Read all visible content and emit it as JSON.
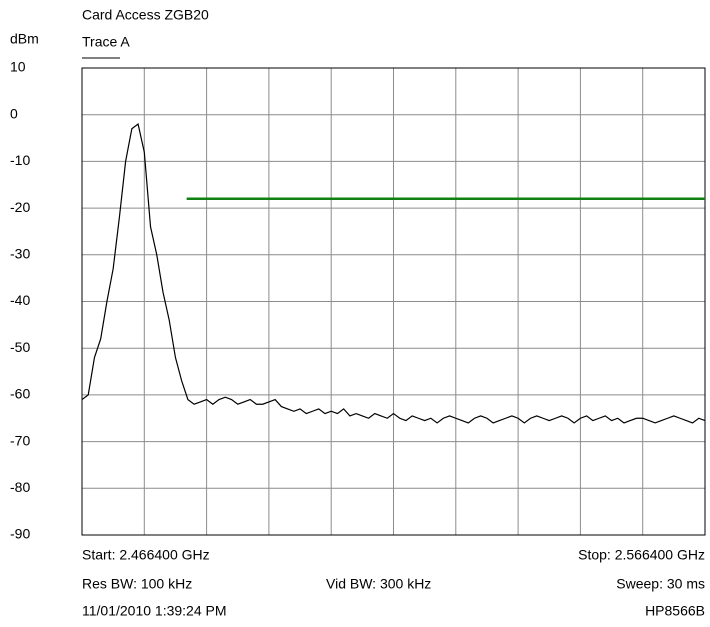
{
  "chart_data": {
    "type": "line",
    "title": "Card Access ZGB20",
    "y_label": "dBm",
    "xlim": [
      2.4664,
      2.5664
    ],
    "ylim": [
      -90,
      10
    ],
    "yticks": [
      10,
      0,
      -10,
      -20,
      -30,
      -40,
      -50,
      -60,
      -70,
      -80,
      -90
    ],
    "xticks": [
      2.4664,
      2.4764,
      2.4864,
      2.4964,
      2.5064,
      2.5164,
      2.5264,
      2.5364,
      2.5464,
      2.5564,
      2.5664
    ],
    "grid": true,
    "series": [
      {
        "name": "Trace A",
        "color": "#000000",
        "x": [
          2.4664,
          2.4674,
          2.4684,
          2.4694,
          2.4704,
          2.4714,
          2.4724,
          2.4734,
          2.4744,
          2.4754,
          2.4764,
          2.4774,
          2.4784,
          2.4794,
          2.4804,
          2.4814,
          2.4824,
          2.4834,
          2.4844,
          2.4854,
          2.4864,
          2.4874,
          2.4884,
          2.4894,
          2.4904,
          2.4914,
          2.4924,
          2.4934,
          2.4944,
          2.4954,
          2.4964,
          2.4974,
          2.4984,
          2.4994,
          2.5004,
          2.5014,
          2.5024,
          2.5034,
          2.5044,
          2.5054,
          2.5064,
          2.5074,
          2.5084,
          2.5094,
          2.5104,
          2.5114,
          2.5124,
          2.5134,
          2.5144,
          2.5154,
          2.5164,
          2.5174,
          2.5184,
          2.5194,
          2.5204,
          2.5214,
          2.5224,
          2.5234,
          2.5244,
          2.5254,
          2.5264,
          2.5274,
          2.5284,
          2.5294,
          2.5304,
          2.5314,
          2.5324,
          2.5334,
          2.5344,
          2.5354,
          2.5364,
          2.5374,
          2.5384,
          2.5394,
          2.5404,
          2.5414,
          2.5424,
          2.5434,
          2.5444,
          2.5454,
          2.5464,
          2.5474,
          2.5484,
          2.5494,
          2.5504,
          2.5514,
          2.5524,
          2.5534,
          2.5544,
          2.5554,
          2.5564,
          2.5574,
          2.5584,
          2.5594,
          2.5604,
          2.5614,
          2.5624,
          2.5634,
          2.5644,
          2.5654,
          2.5664
        ],
        "values": [
          -61,
          -60,
          -52,
          -48,
          -40,
          -33,
          -22,
          -10,
          -3,
          -2,
          -8,
          -24,
          -30,
          -38,
          -44,
          -52,
          -57,
          -61,
          -62,
          -61.5,
          -61,
          -62,
          -61,
          -60.5,
          -61,
          -62,
          -61.5,
          -61,
          -62,
          -62,
          -61.5,
          -61,
          -62.5,
          -63,
          -63.5,
          -63,
          -64,
          -63.5,
          -63,
          -64,
          -63.5,
          -64,
          -63,
          -64.5,
          -64,
          -64.5,
          -65,
          -64,
          -64.5,
          -65,
          -64,
          -65,
          -65.5,
          -64.5,
          -65,
          -65.5,
          -65,
          -66,
          -65,
          -64.5,
          -65,
          -65.5,
          -66,
          -65,
          -64.5,
          -65,
          -66,
          -65.5,
          -65,
          -64.5,
          -65,
          -66,
          -65,
          -64.5,
          -65,
          -65.5,
          -65,
          -64.5,
          -65,
          -66,
          -65,
          -64.5,
          -65.5,
          -65,
          -64.5,
          -65.5,
          -65,
          -66,
          -65.5,
          -65,
          -65,
          -65.5,
          -66,
          -65.5,
          -65,
          -64.5,
          -65,
          -65.5,
          -66,
          -65,
          -65.5
        ]
      }
    ],
    "limit_line": {
      "x": [
        2.4832,
        2.5664
      ],
      "values": [
        -18,
        -18
      ],
      "color": "#108010"
    },
    "footer": {
      "start": "Start: 2.466400 GHz",
      "stop": "Stop: 2.566400 GHz",
      "res_bw": "Res BW: 100 kHz",
      "vid_bw": "Vid BW: 300 kHz",
      "sweep": "Sweep: 30 ms",
      "timestamp": "11/01/2010 1:39:24 PM",
      "instrument": "HP8566B"
    }
  }
}
